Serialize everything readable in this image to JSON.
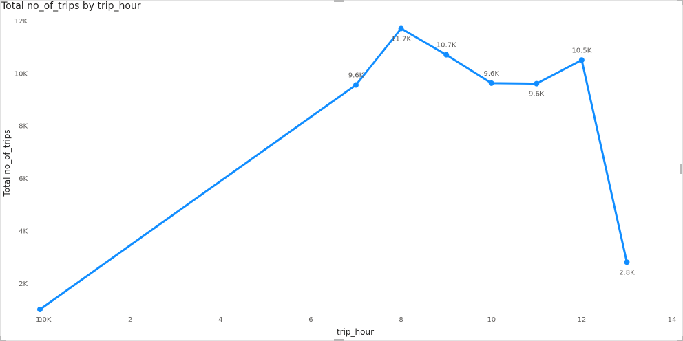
{
  "chart_data": {
    "type": "line",
    "title": "Total no_of_trips by trip_hour",
    "xlabel": "trip_hour",
    "ylabel": "Total no_of_trips",
    "x_ticks": [
      0,
      2,
      4,
      6,
      8,
      10,
      12,
      14
    ],
    "y_ticks": [
      {
        "value": 2000,
        "label": "2K"
      },
      {
        "value": 4000,
        "label": "4K"
      },
      {
        "value": 6000,
        "label": "6K"
      },
      {
        "value": 8000,
        "label": "8K"
      },
      {
        "value": 10000,
        "label": "10K"
      },
      {
        "value": 12000,
        "label": "12K"
      }
    ],
    "xlim": [
      0,
      14
    ],
    "ylim": [
      1000,
      12000
    ],
    "grid": false,
    "series": [
      {
        "color": "#118DFF",
        "points": [
          {
            "x": 0,
            "y": 1000,
            "label": "1.0K",
            "pos": "below"
          },
          {
            "x": 7,
            "y": 9550,
            "label": "9.6K",
            "pos": "above"
          },
          {
            "x": 8,
            "y": 11700,
            "label": "11.7K",
            "pos": "below"
          },
          {
            "x": 9,
            "y": 10700,
            "label": "10.7K",
            "pos": "above"
          },
          {
            "x": 10,
            "y": 9620,
            "label": "9.6K",
            "pos": "above"
          },
          {
            "x": 11,
            "y": 9600,
            "label": "9.6K",
            "pos": "below"
          },
          {
            "x": 12,
            "y": 10500,
            "label": "10.5K",
            "pos": "above"
          },
          {
            "x": 13,
            "y": 2800,
            "label": "2.8K",
            "pos": "below"
          }
        ]
      }
    ]
  }
}
